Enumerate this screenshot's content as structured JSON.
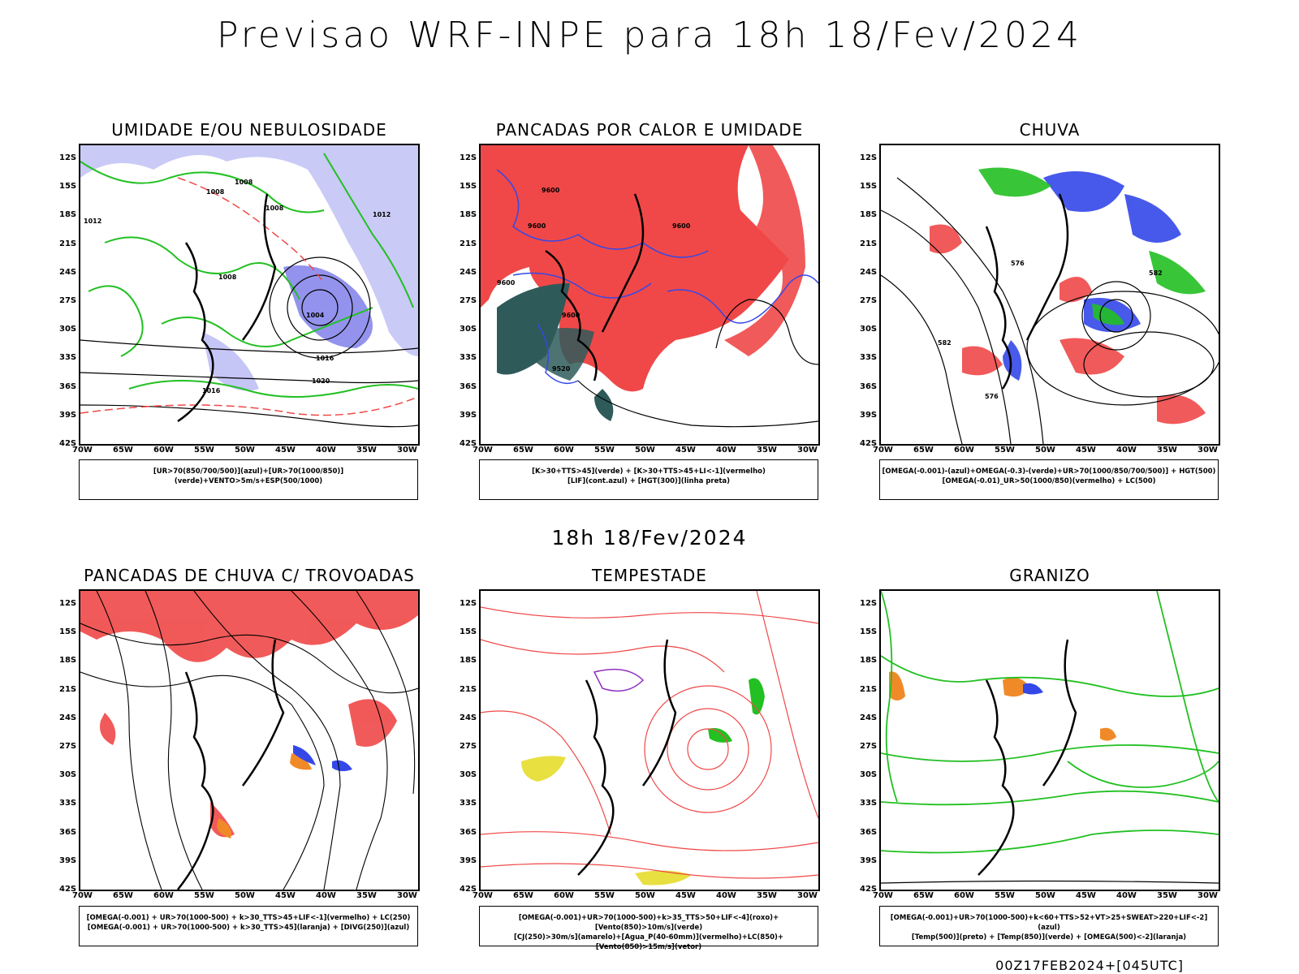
{
  "title": "Previsao WRF-INPE  para 18h 18/Fev/2024",
  "subtitle": "18h 18/Fev/2024",
  "footer": "00Z17FEB2024+[045UTC]",
  "lat_labels": [
    "12S",
    "15S",
    "18S",
    "21S",
    "24S",
    "27S",
    "30S",
    "33S",
    "36S",
    "39S",
    "42S"
  ],
  "lon_labels": [
    "70W",
    "65W",
    "60W",
    "55W",
    "50W",
    "45W",
    "40W",
    "35W",
    "30W"
  ],
  "panels": [
    {
      "title": "UMIDADE E/OU NEBULOSIDADE",
      "legend": [
        "[UR>70(850/700/500)](azul)+[UR>70(1000/850)](verde)+VENTO>5m/s+ESP(500/1000)"
      ]
    },
    {
      "title": "PANCADAS POR CALOR E UMIDADE",
      "legend": [
        "[K>30+TTS>45](verde) + [K>30+TTS>45+LI<-1](vermelho)",
        "[LIF](cont.azul) + [HGT(300)](linha preta)"
      ]
    },
    {
      "title": "CHUVA",
      "legend": [
        "[OMEGA(-0.001)-(azul)+OMEGA(-0.3)-(verde)+UR>70(1000/850/700/500)] + HGT(500)",
        "[OMEGA(-0.01)_UR>50(1000/850)(vermelho) + LC(500)"
      ]
    },
    {
      "title": "PANCADAS DE CHUVA C/ TROVOADAS",
      "legend": [
        "[OMEGA(-0.001) + UR>70(1000-500) + k>30_TTS>45+LIF<-1](vermelho) + LC(250)",
        "[OMEGA(-0.001) + UR>70(1000-500) + k>30_TTS>45](laranja) + [DIVG(250)](azul)"
      ]
    },
    {
      "title": "TEMPESTADE",
      "legend": [
        "[OMEGA(-0.001)+UR>70(1000-500)+k>35_TTS>50+LIF<-4](roxo)+[Vento(850)>10m/s](verde)",
        "[CJ(250)>30m/s](amarelo)+[Agua_P(40-60mm)](vermelho)+LC(850)+[Vento(850)>15m/s](vetor)"
      ]
    },
    {
      "title": "GRANIZO",
      "legend": [
        "[OMEGA(-0.001)+UR>70(1000-500)+k<60+TTS>52+VT>25+SWEAT>220+LIF<-2](azul)",
        "[Temp(500)](preto) + [Temp(850)](verde) + [OMEGA(500)<-2](laranja)"
      ]
    }
  ],
  "contour_labels": {
    "p1": [
      "1008",
      "1008",
      "1008",
      "1012",
      "1012",
      "1008",
      "1004",
      "1016",
      "1020",
      "1016"
    ],
    "p2": [
      "9600",
      "9600",
      "9600",
      "9600",
      "9600",
      "9520"
    ],
    "p3": [
      "582",
      "576",
      "582",
      "576"
    ]
  },
  "colors": {
    "red": "#f04848",
    "blue": "#3448e8",
    "green": "#22c022",
    "teal": "#2f5a5a",
    "lavender": "#9e9ef0",
    "orange": "#f08a28",
    "yellow": "#e8e040",
    "purple": "#9030c0"
  }
}
